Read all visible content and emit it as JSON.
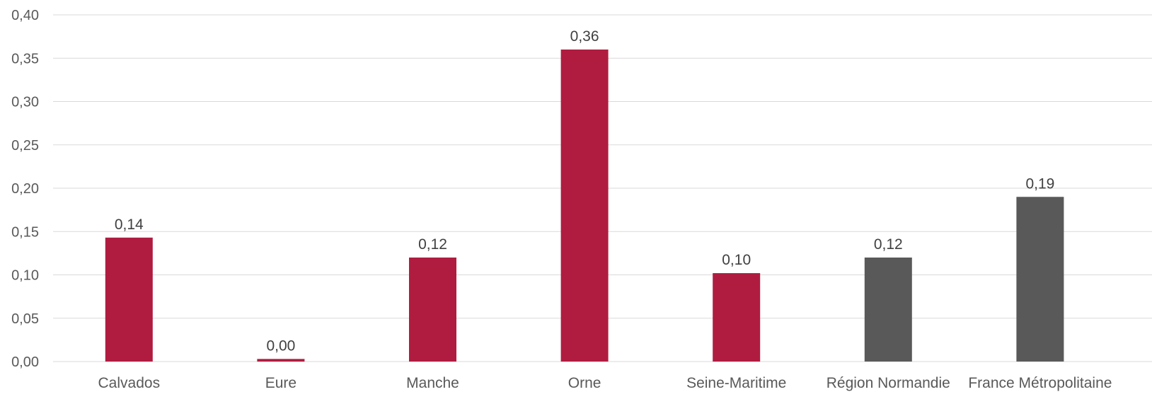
{
  "chart_data": {
    "type": "bar",
    "title": "",
    "xlabel": "",
    "ylabel": "",
    "categories": [
      "Calvados",
      "Eure",
      "Manche",
      "Orne",
      "Seine-Maritime",
      "Région Normandie",
      "France Métropolitaine"
    ],
    "values": [
      0.143,
      0.003,
      0.12,
      0.36,
      0.102,
      0.12,
      0.19
    ],
    "data_labels": [
      "0,14",
      "0,00",
      "0,12",
      "0,36",
      "0,10",
      "0,12",
      "0,19"
    ],
    "bar_colors": [
      "#b01c40",
      "#b01c40",
      "#b01c40",
      "#b01c40",
      "#b01c40",
      "#595959",
      "#595959"
    ],
    "ylim": [
      0,
      0.4
    ],
    "y_ticks": [
      0,
      0.05,
      0.1,
      0.15,
      0.2,
      0.25,
      0.3,
      0.35,
      0.4
    ],
    "y_tick_labels": [
      "0,00",
      "0,05",
      "0,10",
      "0,15",
      "0,20",
      "0,25",
      "0,30",
      "0,35",
      "0,40"
    ],
    "grid": true,
    "legend": "none"
  }
}
